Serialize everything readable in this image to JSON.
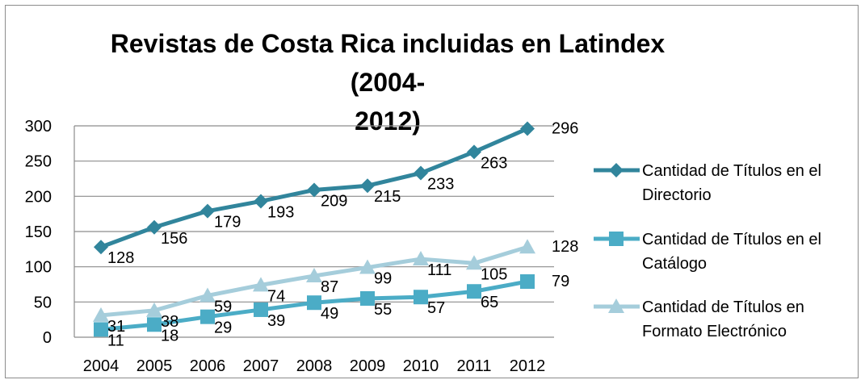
{
  "chart_data": {
    "type": "line",
    "title": "Revistas de Costa Rica incluidas en Latindex (2004-2012)",
    "title_lines": [
      "Revistas de Costa Rica incluidas en Latindex (2004-",
      "2012)"
    ],
    "categories": [
      "2004",
      "2005",
      "2006",
      "2007",
      "2008",
      "2009",
      "2010",
      "2011",
      "2012"
    ],
    "ylim": [
      0,
      300
    ],
    "yticks": [
      0,
      50,
      100,
      150,
      200,
      250,
      300
    ],
    "grid": true,
    "legend_position": "right",
    "series": [
      {
        "name": "Cantidad de Títulos en el Directorio",
        "legend_lines": [
          "Cantidad de Títulos en el",
          "Directorio"
        ],
        "marker": "diamond",
        "color": "#31859C",
        "values": [
          128,
          156,
          179,
          193,
          209,
          215,
          233,
          263,
          296
        ],
        "labels": [
          "128",
          "156",
          "179",
          "193",
          "209",
          "215",
          "233",
          "263",
          "296"
        ]
      },
      {
        "name": "Cantidad de Títulos en el Catálogo",
        "legend_lines": [
          "Cantidad de Títulos en el",
          "Catálogo"
        ],
        "marker": "square",
        "color": "#4BACC6",
        "values": [
          11,
          18,
          29,
          39,
          49,
          55,
          57,
          65,
          79
        ],
        "labels": [
          "11",
          "18",
          "29",
          "39",
          "49",
          "55",
          "57",
          "65",
          "79"
        ]
      },
      {
        "name": "Cantidad de Títulos en Formato Electrónico",
        "legend_lines": [
          "Cantidad de Títulos en",
          "Formato Electrónico"
        ],
        "marker": "triangle",
        "color": "#A5CDDB",
        "values": [
          31,
          38,
          59,
          74,
          87,
          99,
          111,
          105,
          128
        ],
        "labels": [
          "31",
          "38",
          "59",
          "74",
          "87",
          "99",
          "111",
          "105",
          "128"
        ]
      }
    ]
  }
}
